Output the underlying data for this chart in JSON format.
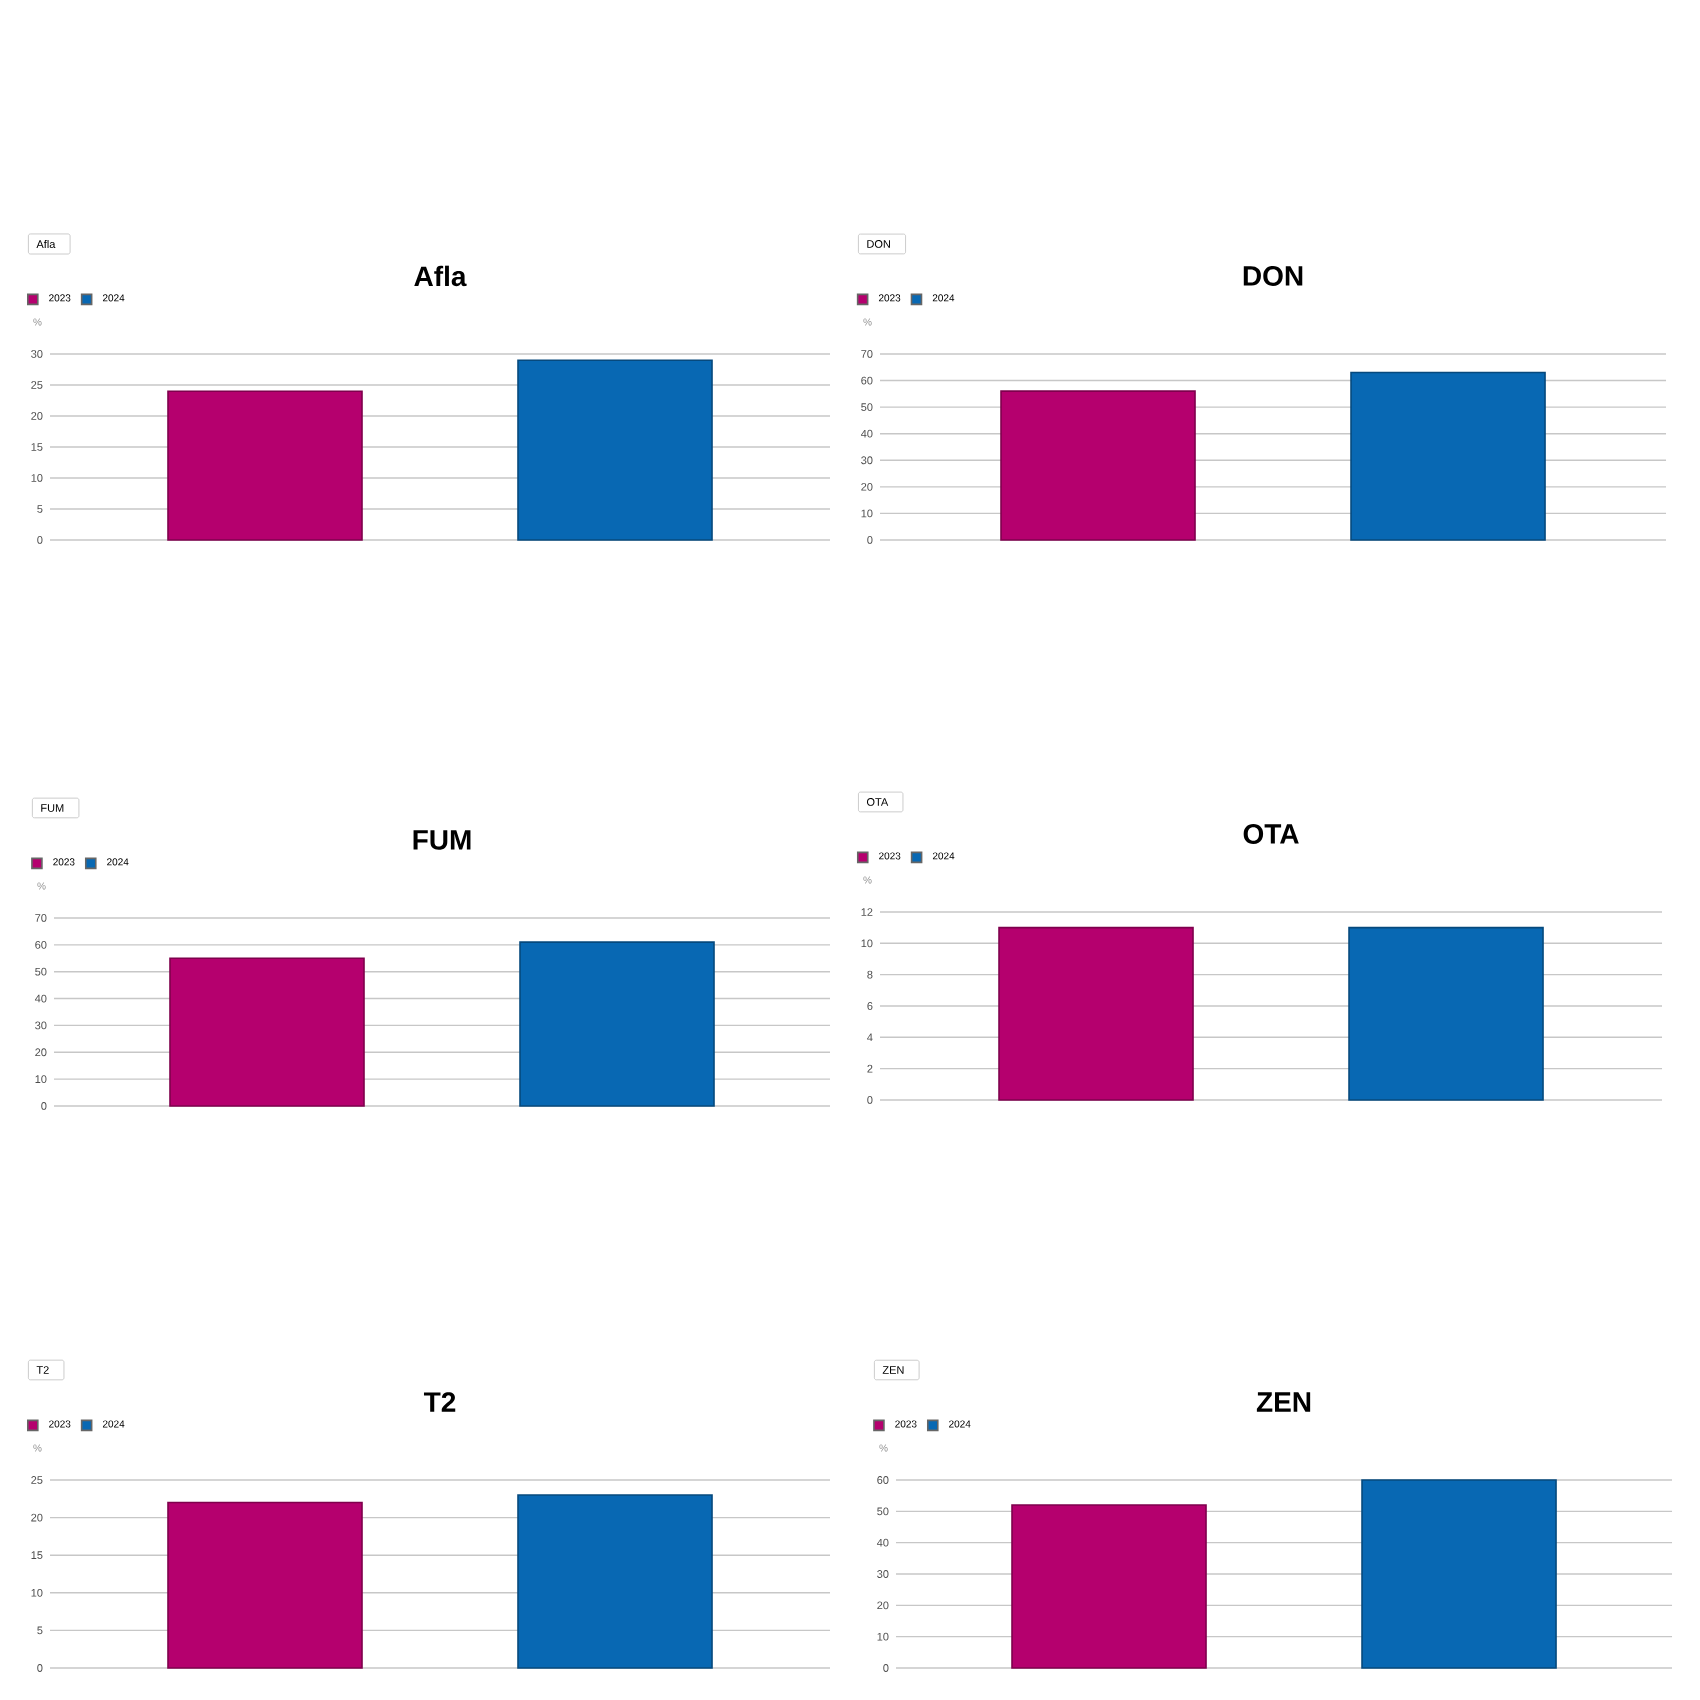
{
  "chart_data": [
    {
      "type": "bar",
      "title": "Afla",
      "ylabel": "%",
      "annotations": [
        "Afla"
      ],
      "categories": [
        null
      ],
      "series": [
        {
          "name": "2023",
          "color": "#b5006e",
          "values": [
            24
          ]
        },
        {
          "name": "2024",
          "color": "#0868b3",
          "values": [
            29
          ]
        }
      ],
      "ylim": [
        0,
        30
      ],
      "yticks": [
        0,
        5,
        10,
        15,
        20,
        25,
        30
      ],
      "grid": "y",
      "legend": "top left"
    },
    {
      "type": "bar",
      "title": "DON",
      "ylabel": "%",
      "annotations": [
        "DON"
      ],
      "categories": [
        null
      ],
      "series": [
        {
          "name": "2023",
          "color": "#b5006e",
          "values": [
            56
          ]
        },
        {
          "name": "2024",
          "color": "#0868b3",
          "values": [
            63
          ]
        }
      ],
      "ylim": [
        0,
        70
      ],
      "yticks": [
        0,
        10,
        20,
        30,
        40,
        50,
        60,
        70
      ],
      "grid": "y",
      "legend": "top left"
    },
    {
      "type": "bar",
      "title": "FUM",
      "ylabel": "%",
      "annotations": [
        "FUM"
      ],
      "categories": [
        null
      ],
      "series": [
        {
          "name": "2023",
          "color": "#b5006e",
          "values": [
            55
          ]
        },
        {
          "name": "2024",
          "color": "#0868b3",
          "values": [
            61
          ]
        }
      ],
      "ylim": [
        0,
        70
      ],
      "yticks": [
        0,
        10,
        20,
        30,
        40,
        50,
        60,
        70
      ],
      "grid": "y",
      "legend": "top left"
    },
    {
      "type": "bar",
      "title": "OTA",
      "ylabel": "%",
      "annotations": [
        "OTA"
      ],
      "categories": [
        null
      ],
      "series": [
        {
          "name": "2023",
          "color": "#b5006e",
          "values": [
            11
          ]
        },
        {
          "name": "2024",
          "color": "#0868b3",
          "values": [
            11
          ]
        }
      ],
      "ylim": [
        0,
        12
      ],
      "yticks": [
        0,
        2,
        4,
        6,
        8,
        10,
        12
      ],
      "grid": "y",
      "legend": "top left"
    },
    {
      "type": "bar",
      "title": "T2",
      "ylabel": "%",
      "annotations": [
        "T2"
      ],
      "categories": [
        null
      ],
      "series": [
        {
          "name": "2023",
          "color": "#b5006e",
          "values": [
            22
          ]
        },
        {
          "name": "2024",
          "color": "#0868b3",
          "values": [
            23
          ]
        }
      ],
      "ylim": [
        0,
        25
      ],
      "yticks": [
        0,
        5,
        10,
        15,
        20,
        25
      ],
      "grid": "y",
      "legend": "top left"
    },
    {
      "type": "bar",
      "title": "ZEN",
      "ylabel": "%",
      "annotations": [
        "ZEN"
      ],
      "categories": [
        null
      ],
      "series": [
        {
          "name": "2023",
          "color": "#b5006e",
          "values": [
            52
          ]
        },
        {
          "name": "2024",
          "color": "#0868b3",
          "values": [
            60
          ]
        }
      ],
      "ylim": [
        0,
        60
      ],
      "yticks": [
        0,
        10,
        20,
        30,
        40,
        50,
        60
      ],
      "grid": "y",
      "legend": "top left"
    }
  ]
}
